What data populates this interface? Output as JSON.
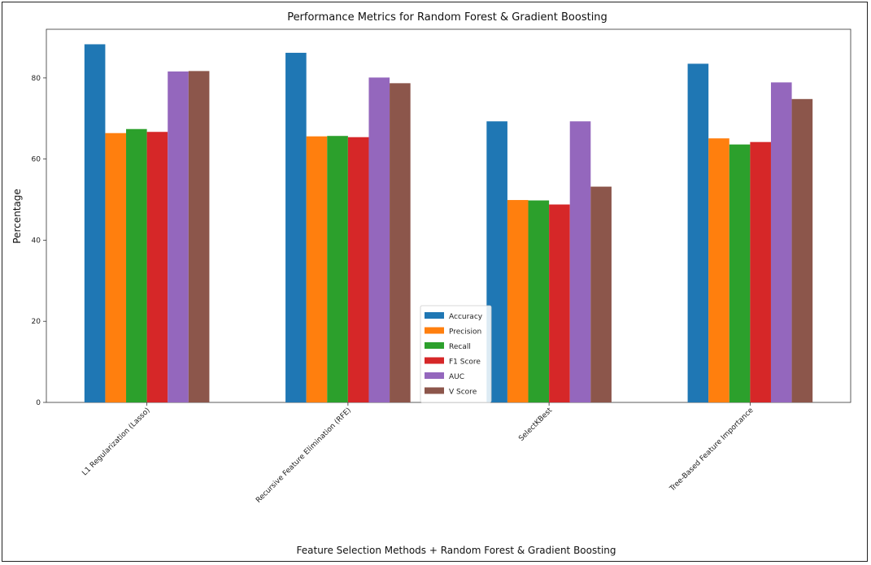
{
  "chart_data": {
    "type": "bar",
    "title": "Performance Metrics for Random Forest & Gradient Boosting",
    "xlabel": "Feature Selection Methods + Random Forest & Gradient Boosting",
    "ylabel": "Percentage",
    "ylim": [
      0,
      92
    ],
    "yticks": [
      0,
      20,
      40,
      60,
      80
    ],
    "grid": false,
    "legend_position": "lower-center",
    "categories": [
      "L1 Regularization (Lasso)",
      "Recursive Feature Elimination (RFE)",
      "SelectKBest",
      "Tree-Based Feature Importance"
    ],
    "series": [
      {
        "name": "Accuracy",
        "color": "#1f77b4",
        "values": [
          88.3,
          86.2,
          69.3,
          83.5
        ]
      },
      {
        "name": "Precision",
        "color": "#ff7f0e",
        "values": [
          66.4,
          65.6,
          49.9,
          65.1
        ]
      },
      {
        "name": "Recall",
        "color": "#2ca02c",
        "values": [
          67.4,
          65.7,
          49.8,
          63.6
        ]
      },
      {
        "name": "F1 Score",
        "color": "#d62728",
        "values": [
          66.7,
          65.4,
          48.8,
          64.2
        ]
      },
      {
        "name": "AUC",
        "color": "#9467bd",
        "values": [
          81.6,
          80.1,
          69.3,
          78.9
        ]
      },
      {
        "name": "V Score",
        "color": "#8c564b",
        "values": [
          81.7,
          78.7,
          53.2,
          74.8
        ]
      }
    ]
  }
}
